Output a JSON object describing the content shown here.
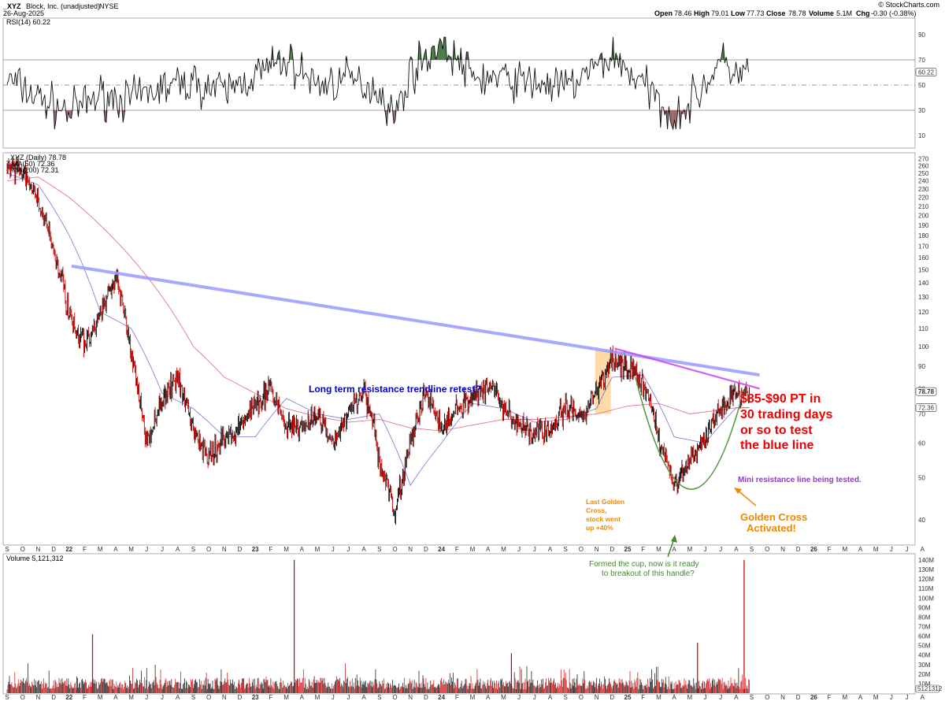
{
  "header": {
    "symbol": "_XYZ",
    "company": "Block, Inc. (unadjusted)",
    "exchange": "NYSE",
    "date": "26-Aug-2025",
    "brand": "© StockCharts.com",
    "open_label": "Open",
    "open": "78.46",
    "high_label": "High",
    "high": "79.01",
    "low_label": "Low",
    "low": "77.73",
    "close_label": "Close",
    "close": "78.78",
    "volume_label": "Volume",
    "volume": "5.1M",
    "chg_label": "Chg",
    "chg": "-0.30 (-0.38%)"
  },
  "colors": {
    "up_candle": "#000000",
    "down_candle": "#cc0000",
    "ma50": "#6666cc",
    "ma200": "#dd5566",
    "trendline": "#9999ff",
    "mini_resistance": "#cc44ee",
    "cup": "#559944",
    "highlight": "#ffcc88",
    "annotation_blue": "#0000cc",
    "annotation_red": "#ee0000",
    "annotation_orange": "#ee8800",
    "annotation_purple": "#9933cc",
    "annotation_green": "#448833",
    "rsi_overbought_fill": "#447744",
    "rsi_oversold_fill": "#996666"
  },
  "x_axis_labels": [
    "S",
    "O",
    "N",
    "D",
    "22",
    "F",
    "M",
    "A",
    "M",
    "J",
    "J",
    "A",
    "S",
    "O",
    "N",
    "D",
    "23",
    "F",
    "M",
    "A",
    "M",
    "J",
    "J",
    "A",
    "S",
    "O",
    "N",
    "D",
    "24",
    "F",
    "M",
    "A",
    "M",
    "J",
    "J",
    "A",
    "S",
    "O",
    "N",
    "D",
    "25",
    "F",
    "M",
    "A",
    "M",
    "J",
    "J",
    "A",
    "S",
    "O",
    "N",
    "D",
    "26",
    "F",
    "M",
    "A",
    "M",
    "J",
    "J",
    "A"
  ],
  "chart_data": [
    {
      "type": "line",
      "panel": "rsi",
      "legend": "RSI(14) 60.22",
      "current_value": "60.22",
      "ylim": [
        0,
        100
      ],
      "yticks": [
        10,
        30,
        50,
        70,
        90
      ],
      "reference_lines": [
        30,
        50,
        70
      ],
      "series": [
        {
          "name": "RSI(14)",
          "x": [
            "2021-09",
            "2021-11",
            "2022-01",
            "2022-03",
            "2022-05",
            "2022-07",
            "2022-09",
            "2022-11",
            "2023-01",
            "2023-03",
            "2023-05",
            "2023-07",
            "2023-09",
            "2023-10",
            "2023-11",
            "2024-01",
            "2024-03",
            "2024-05",
            "2024-07",
            "2024-09",
            "2024-11",
            "2024-12",
            "2025-02",
            "2025-04",
            "2025-05",
            "2025-07",
            "2025-08"
          ],
          "values": [
            55,
            40,
            28,
            42,
            38,
            48,
            52,
            45,
            58,
            70,
            50,
            55,
            46,
            24,
            60,
            84,
            56,
            55,
            52,
            48,
            64,
            74,
            50,
            24,
            35,
            68,
            60
          ]
        }
      ]
    },
    {
      "type": "line",
      "panel": "price",
      "legend": [
        "_XYZ (Daily) 78.78",
        "MA(50) 72.36",
        "MA(200) 72.31"
      ],
      "price_labels": [
        "78.78",
        "72.36"
      ],
      "ylim": [
        35,
        275
      ],
      "yticks": [
        40,
        50,
        60,
        70,
        80,
        90,
        100,
        110,
        120,
        130,
        140,
        150,
        160,
        170,
        180,
        190,
        200,
        210,
        220,
        230,
        240,
        250,
        260,
        270
      ],
      "series": [
        {
          "name": "_XYZ (Daily)",
          "x": [
            "2021-09",
            "2021-10",
            "2021-11",
            "2021-12",
            "2022-01",
            "2022-02",
            "2022-03",
            "2022-04",
            "2022-05",
            "2022-06",
            "2022-07",
            "2022-08",
            "2022-09",
            "2022-10",
            "2022-11",
            "2022-12",
            "2023-01",
            "2023-02",
            "2023-03",
            "2023-04",
            "2023-05",
            "2023-06",
            "2023-07",
            "2023-08",
            "2023-09",
            "2023-10",
            "2023-11",
            "2023-12",
            "2024-01",
            "2024-02",
            "2024-03",
            "2024-04",
            "2024-05",
            "2024-06",
            "2024-07",
            "2024-08",
            "2024-09",
            "2024-10",
            "2024-11",
            "2024-12",
            "2025-01",
            "2025-02",
            "2025-03",
            "2025-04",
            "2025-05",
            "2025-06",
            "2025-07",
            "2025-08"
          ],
          "values": [
            255,
            250,
            215,
            165,
            120,
            100,
            120,
            145,
            95,
            60,
            75,
            85,
            65,
            55,
            62,
            65,
            75,
            80,
            65,
            65,
            70,
            60,
            70,
            80,
            55,
            42,
            60,
            78,
            65,
            70,
            76,
            82,
            73,
            65,
            64,
            64,
            72,
            67,
            78,
            95,
            90,
            82,
            62,
            48,
            55,
            62,
            72,
            78.78
          ]
        },
        {
          "name": "MA(50)",
          "x": [
            "2021-09",
            "2021-11",
            "2022-01",
            "2022-03",
            "2022-05",
            "2022-07",
            "2022-09",
            "2022-11",
            "2023-01",
            "2023-03",
            "2023-05",
            "2023-07",
            "2023-09",
            "2023-11",
            "2024-01",
            "2024-03",
            "2024-05",
            "2024-07",
            "2024-09",
            "2024-11",
            "2024-12",
            "2025-02",
            "2025-04",
            "2025-06",
            "2025-08"
          ],
          "values": [
            250,
            235,
            180,
            120,
            110,
            78,
            72,
            62,
            62,
            76,
            70,
            68,
            70,
            48,
            60,
            74,
            72,
            67,
            68,
            72,
            85,
            86,
            62,
            60,
            72.36
          ]
        },
        {
          "name": "MA(200)",
          "x": [
            "2021-09",
            "2021-11",
            "2022-01",
            "2022-03",
            "2022-05",
            "2022-07",
            "2022-09",
            "2022-11",
            "2023-01",
            "2023-03",
            "2023-05",
            "2023-07",
            "2023-09",
            "2023-11",
            "2024-01",
            "2024-03",
            "2024-05",
            "2024-07",
            "2024-09",
            "2024-11",
            "2025-01",
            "2025-03",
            "2025-05",
            "2025-08"
          ],
          "values": [
            240,
            245,
            220,
            190,
            160,
            130,
            100,
            85,
            78,
            72,
            69,
            67,
            68,
            65,
            64,
            66,
            68,
            68,
            69,
            70,
            73,
            74,
            70,
            72.31
          ]
        }
      ],
      "trendlines": [
        {
          "name": "Long term resistance trendline",
          "x": [
            "2022-01",
            "2025-09"
          ],
          "values": [
            153,
            86
          ]
        },
        {
          "name": "Mini resistance line",
          "x": [
            "2024-12",
            "2025-09"
          ],
          "values": [
            99,
            80
          ]
        }
      ],
      "annotations": {
        "blue": "Long term resistance trendline retest?",
        "red": [
          "$85-$90 PT in",
          "30 trading days",
          "or so to test",
          "the blue line"
        ],
        "purple": "Mini resistance line being tested.",
        "orange_golden": [
          "Golden Cross",
          "Activated!"
        ],
        "orange_last": [
          "Last Golden",
          "Cross,",
          "stock went",
          "up +40%"
        ],
        "green": [
          "Formed the cup, now is it ready",
          "to breakout of this handle?"
        ]
      }
    },
    {
      "type": "bar",
      "panel": "volume",
      "legend": "Volume 5,121,312",
      "current_value": "5121312",
      "ylim": [
        0,
        140
      ],
      "unit": "M",
      "yticks": [
        10,
        20,
        30,
        40,
        50,
        60,
        70,
        80,
        90,
        100,
        110,
        120,
        130,
        140
      ],
      "spikes": [
        {
          "x": "2022-02",
          "value": 62
        },
        {
          "x": "2023-03",
          "value": 140
        },
        {
          "x": "2024-05",
          "value": 42
        },
        {
          "x": "2025-05",
          "value": 53
        },
        {
          "x": "2025-08",
          "value": 140
        }
      ]
    }
  ]
}
